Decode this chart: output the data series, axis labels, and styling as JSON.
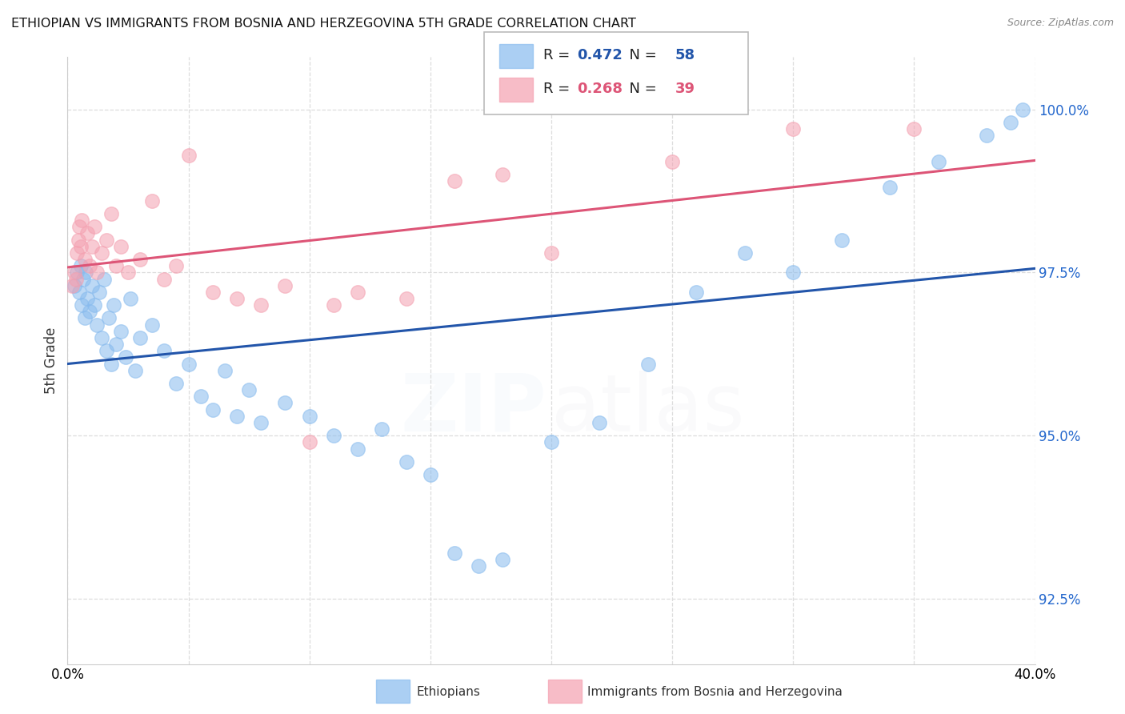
{
  "title": "ETHIOPIAN VS IMMIGRANTS FROM BOSNIA AND HERZEGOVINA 5TH GRADE CORRELATION CHART",
  "source_text": "Source: ZipAtlas.com",
  "ylabel": "5th Grade",
  "xlim": [
    0.0,
    40.0
  ],
  "ylim": [
    91.5,
    100.8
  ],
  "yticks": [
    92.5,
    95.0,
    97.5,
    100.0
  ],
  "ytick_labels": [
    "92.5%",
    "95.0%",
    "97.5%",
    "100.0%"
  ],
  "blue_R": 0.472,
  "blue_N": 58,
  "pink_R": 0.268,
  "pink_N": 39,
  "blue_color": "#88bbee",
  "pink_color": "#f4a0b0",
  "blue_line_color": "#2255aa",
  "pink_line_color": "#dd5577",
  "legend_blue_label": "Ethiopians",
  "legend_pink_label": "Immigrants from Bosnia and Herzegovina",
  "background_color": "#ffffff",
  "grid_color": "#dddddd",
  "blue_x": [
    0.3,
    0.4,
    0.5,
    0.55,
    0.6,
    0.65,
    0.7,
    0.75,
    0.8,
    0.9,
    1.0,
    1.1,
    1.2,
    1.3,
    1.4,
    1.5,
    1.6,
    1.7,
    1.8,
    1.9,
    2.0,
    2.2,
    2.4,
    2.6,
    2.8,
    3.0,
    3.5,
    4.0,
    4.5,
    5.0,
    5.5,
    6.0,
    6.5,
    7.0,
    7.5,
    8.0,
    9.0,
    10.0,
    11.0,
    12.0,
    13.0,
    14.0,
    15.0,
    16.0,
    17.0,
    18.0,
    20.0,
    22.0,
    24.0,
    26.0,
    28.0,
    30.0,
    32.0,
    34.0,
    36.0,
    38.0,
    39.0,
    39.5
  ],
  "blue_y": [
    97.3,
    97.5,
    97.2,
    97.6,
    97.0,
    97.4,
    96.8,
    97.5,
    97.1,
    96.9,
    97.3,
    97.0,
    96.7,
    97.2,
    96.5,
    97.4,
    96.3,
    96.8,
    96.1,
    97.0,
    96.4,
    96.6,
    96.2,
    97.1,
    96.0,
    96.5,
    96.7,
    96.3,
    95.8,
    96.1,
    95.6,
    95.4,
    96.0,
    95.3,
    95.7,
    95.2,
    95.5,
    95.3,
    95.0,
    94.8,
    95.1,
    94.6,
    94.4,
    93.2,
    93.0,
    93.1,
    94.9,
    95.2,
    96.1,
    97.2,
    97.8,
    97.5,
    98.0,
    98.8,
    99.2,
    99.6,
    99.8,
    100.0
  ],
  "pink_x": [
    0.2,
    0.3,
    0.35,
    0.4,
    0.45,
    0.5,
    0.55,
    0.6,
    0.7,
    0.8,
    0.9,
    1.0,
    1.1,
    1.2,
    1.4,
    1.6,
    1.8,
    2.0,
    2.2,
    2.5,
    3.0,
    3.5,
    4.0,
    4.5,
    5.0,
    6.0,
    7.0,
    8.0,
    9.0,
    10.0,
    11.0,
    12.0,
    14.0,
    16.0,
    18.0,
    20.0,
    25.0,
    30.0,
    35.0
  ],
  "pink_y": [
    97.3,
    97.5,
    97.4,
    97.8,
    98.0,
    98.2,
    97.9,
    98.3,
    97.7,
    98.1,
    97.6,
    97.9,
    98.2,
    97.5,
    97.8,
    98.0,
    98.4,
    97.6,
    97.9,
    97.5,
    97.7,
    98.6,
    97.4,
    97.6,
    99.3,
    97.2,
    97.1,
    97.0,
    97.3,
    94.9,
    97.0,
    97.2,
    97.1,
    98.9,
    99.0,
    97.8,
    99.2,
    99.7,
    99.7
  ],
  "watermark_zip_color": "#aaccee",
  "watermark_atlas_color": "#bbbbcc"
}
